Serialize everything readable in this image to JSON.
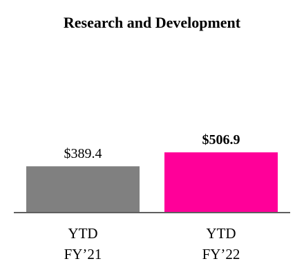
{
  "chart_data": {
    "type": "bar",
    "title": "Research and Development",
    "categories": [
      [
        "YTD",
        "FY’21"
      ],
      [
        "YTD",
        "FY’22"
      ]
    ],
    "values": [
      389.4,
      506.9
    ],
    "data_labels": [
      "$389.4",
      "$506.9"
    ],
    "data_label_bold": [
      false,
      true
    ],
    "colors": [
      "#808080",
      "#ff0099"
    ],
    "axis_color": "#5f5f5f",
    "ylim": [
      0,
      600
    ],
    "grid": false,
    "legend": "none",
    "xlabel": "",
    "ylabel": ""
  }
}
